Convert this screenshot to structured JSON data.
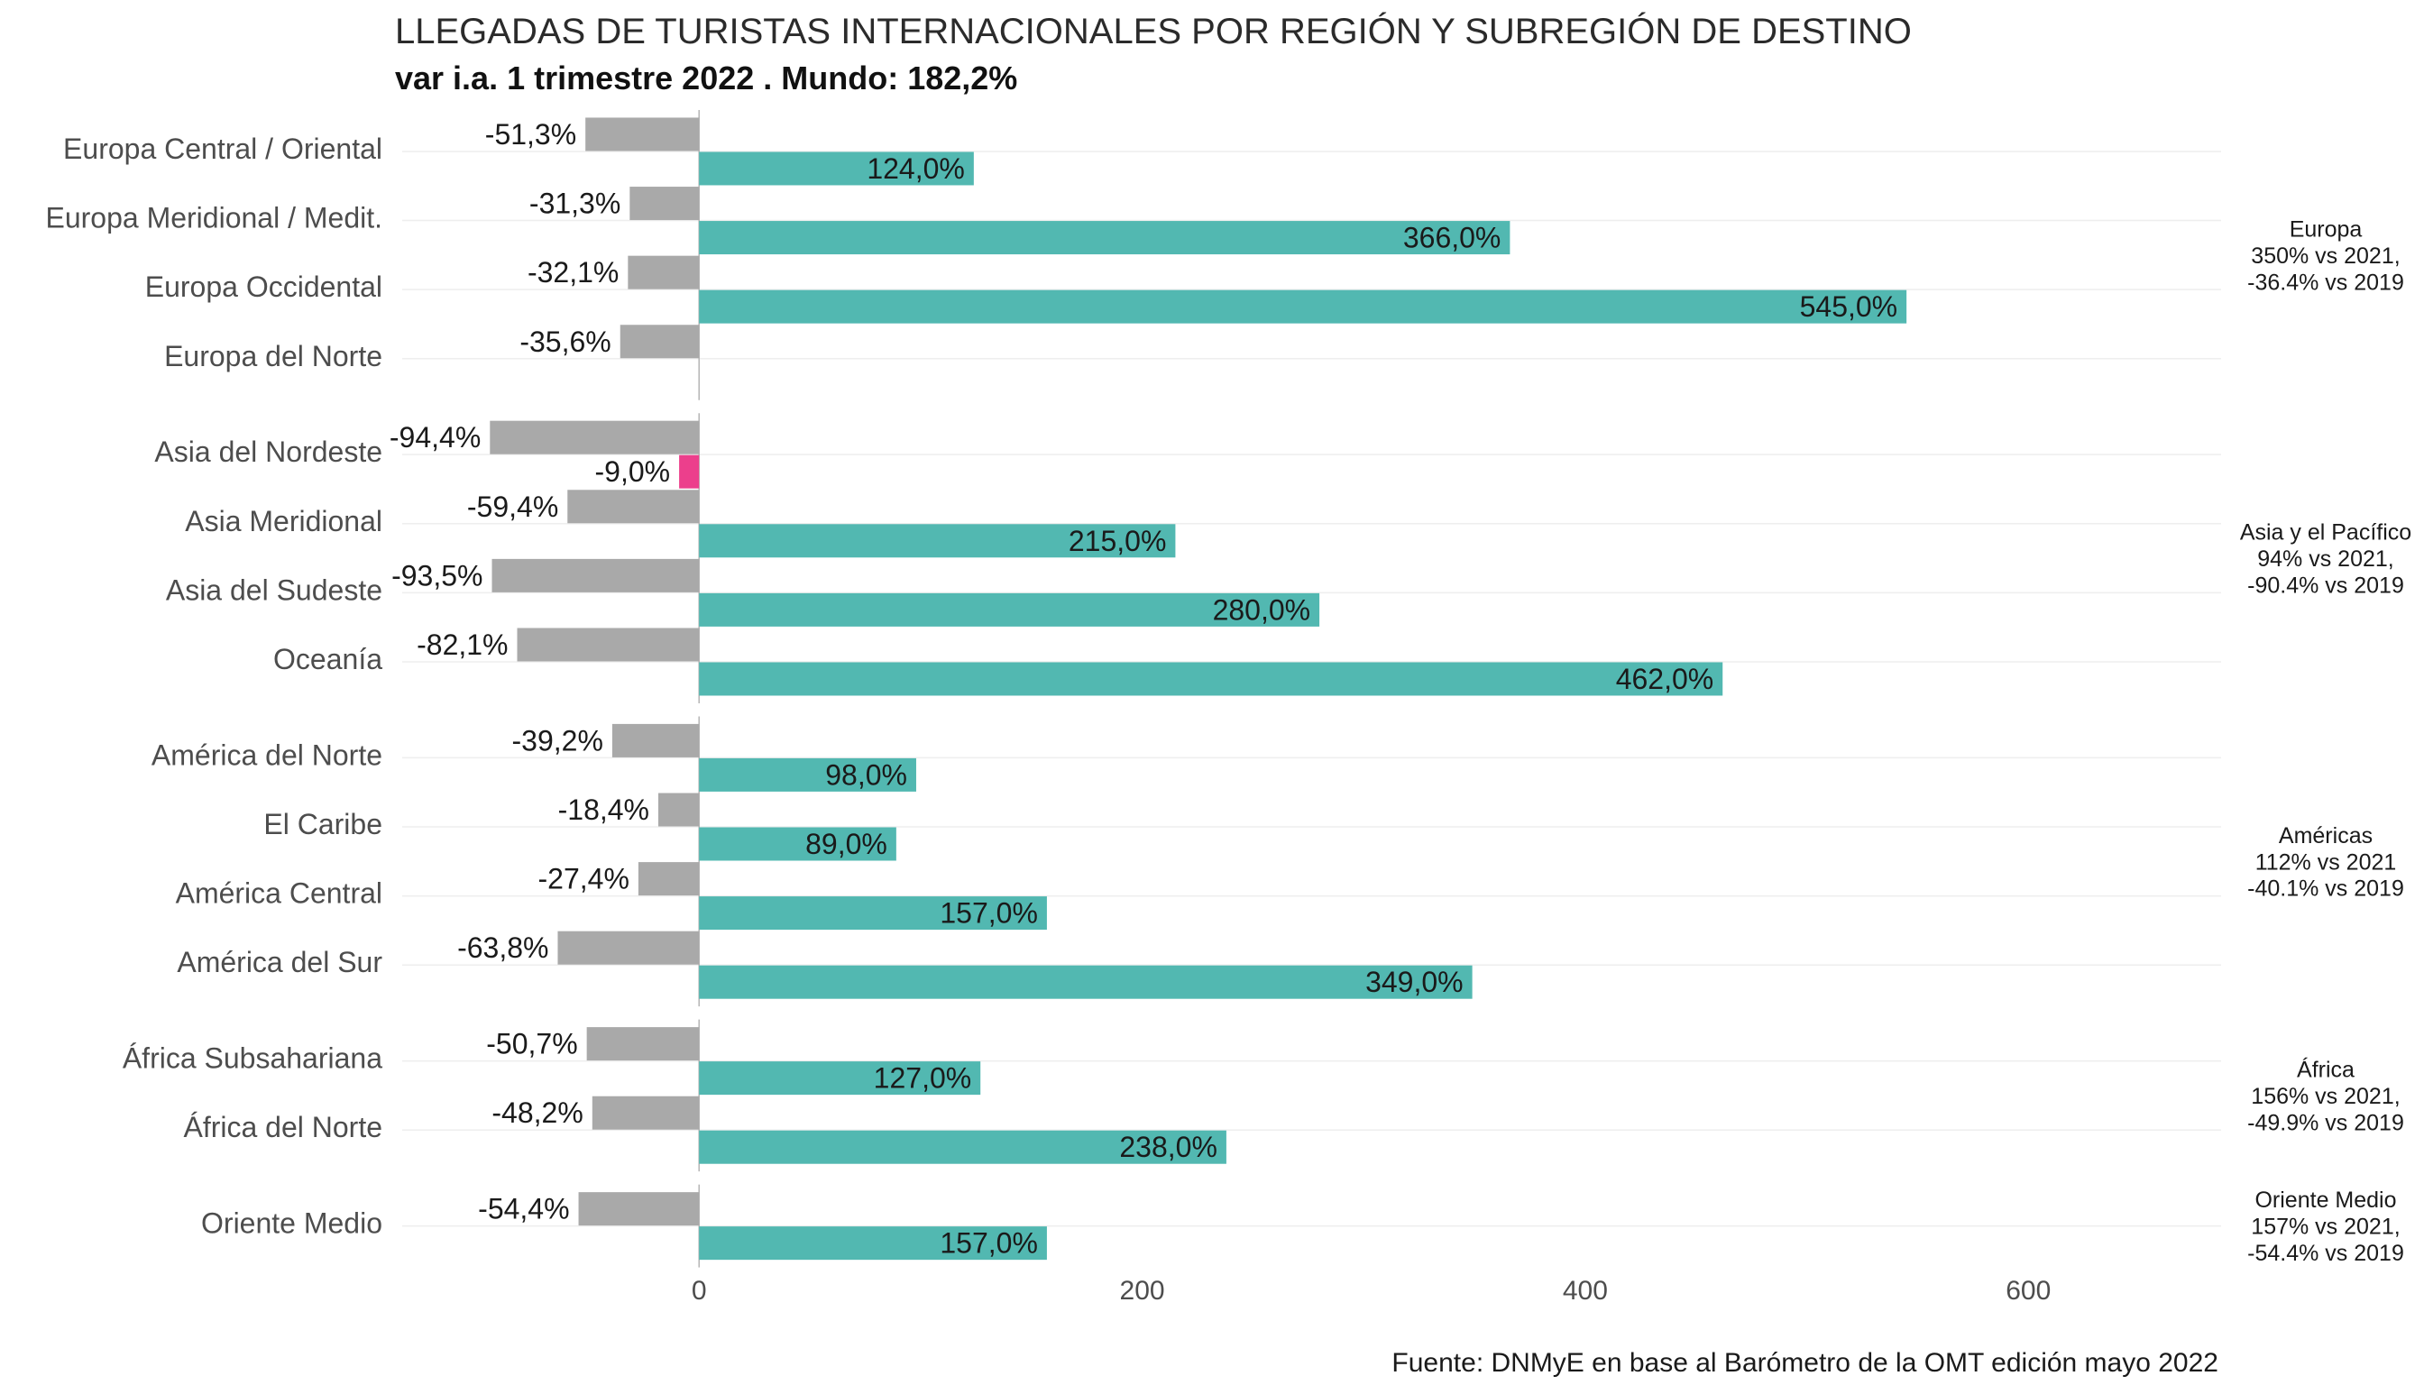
{
  "title": "LLEGADAS DE TURISTAS INTERNACIONALES POR REGIÓN Y SUBREGIÓN DE DESTINO",
  "subtitle": "var i.a. 1 trimestre 2022 . Mundo: 182,2%",
  "source": "Fuente: DNMyE en base al Barómetro de la OMT edición mayo 2022",
  "colors": {
    "bar_vs_2019": "#a9a9a9",
    "bar_vs_2021_positive": "#52b8b1",
    "bar_vs_2021_negative": "#ec3f8c",
    "gridline": "#eeeeee",
    "zero_line": "#b5b5b5"
  },
  "chart_data": {
    "type": "bar",
    "orientation": "horizontal",
    "xlim": [
      -134,
      687
    ],
    "x_ticks": [
      0,
      200,
      400,
      600
    ],
    "grid": true,
    "legend": "none",
    "facets": [
      {
        "strip_lines": [
          "Europa",
          "350% vs 2021,",
          "-36.4% vs 2019"
        ],
        "rows": [
          {
            "category": "Europa Central / Oriental",
            "vs_2019": -51.3,
            "vs_2021": 124.0
          },
          {
            "category": "Europa Meridional / Medit.",
            "vs_2019": -31.3,
            "vs_2021": 366.0
          },
          {
            "category": "Europa Occidental",
            "vs_2019": -32.1,
            "vs_2021": 545.0
          },
          {
            "category": "Europa del Norte",
            "vs_2019": -35.6,
            "vs_2021": null
          }
        ]
      },
      {
        "strip_lines": [
          "Asia y el Pacífico",
          "94% vs 2021,",
          "-90.4% vs 2019"
        ],
        "rows": [
          {
            "category": "Asia del Nordeste",
            "vs_2019": -94.4,
            "vs_2021": -9.0
          },
          {
            "category": "Asia Meridional",
            "vs_2019": -59.4,
            "vs_2021": 215.0
          },
          {
            "category": "Asia del Sudeste",
            "vs_2019": -93.5,
            "vs_2021": 280.0
          },
          {
            "category": "Oceanía",
            "vs_2019": -82.1,
            "vs_2021": 462.0
          }
        ]
      },
      {
        "strip_lines": [
          "Américas",
          "112% vs 2021",
          "-40.1% vs 2019"
        ],
        "rows": [
          {
            "category": "América del Norte",
            "vs_2019": -39.2,
            "vs_2021": 98.0
          },
          {
            "category": "El Caribe",
            "vs_2019": -18.4,
            "vs_2021": 89.0
          },
          {
            "category": "América Central",
            "vs_2019": -27.4,
            "vs_2021": 157.0
          },
          {
            "category": "América del Sur",
            "vs_2019": -63.8,
            "vs_2021": 349.0
          }
        ]
      },
      {
        "strip_lines": [
          "África",
          "156% vs 2021,",
          "-49.9% vs 2019"
        ],
        "rows": [
          {
            "category": "África Subsahariana",
            "vs_2019": -50.7,
            "vs_2021": 127.0
          },
          {
            "category": "África del Norte",
            "vs_2019": -48.2,
            "vs_2021": 238.0
          }
        ]
      },
      {
        "strip_lines": [
          "Oriente Medio",
          "157% vs 2021,",
          "-54.4% vs 2019"
        ],
        "rows": [
          {
            "category": "Oriente Medio",
            "vs_2019": -54.4,
            "vs_2021": 157.0
          }
        ]
      }
    ]
  }
}
